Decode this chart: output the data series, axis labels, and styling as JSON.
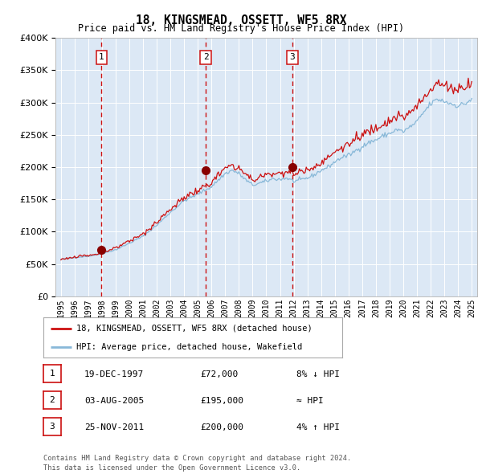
{
  "title": "18, KINGSMEAD, OSSETT, WF5 8RX",
  "subtitle": "Price paid vs. HM Land Registry's House Price Index (HPI)",
  "plot_bg_color": "#dce8f5",
  "red_line_color": "#cc1111",
  "blue_line_color": "#88b8d8",
  "dot_color": "#880000",
  "vline_color": "#cc1111",
  "legend_entries": [
    "18, KINGSMEAD, OSSETT, WF5 8RX (detached house)",
    "HPI: Average price, detached house, Wakefield"
  ],
  "sale_years": [
    1997.97,
    2005.58,
    2011.9
  ],
  "sale_prices": [
    72000,
    195000,
    200000
  ],
  "sale_labels": [
    "1",
    "2",
    "3"
  ],
  "table_rows": [
    [
      "1",
      "19-DEC-1997",
      "£72,000",
      "8% ↓ HPI"
    ],
    [
      "2",
      "03-AUG-2005",
      "£195,000",
      "≈ HPI"
    ],
    [
      "3",
      "25-NOV-2011",
      "£200,000",
      "4% ↑ HPI"
    ]
  ],
  "footer": "Contains HM Land Registry data © Crown copyright and database right 2024.\nThis data is licensed under the Open Government Licence v3.0.",
  "ylim": [
    0,
    400000
  ],
  "yticks": [
    0,
    50000,
    100000,
    150000,
    200000,
    250000,
    300000,
    350000,
    400000
  ],
  "xlim_start": 1994.6,
  "xlim_end": 2025.4
}
